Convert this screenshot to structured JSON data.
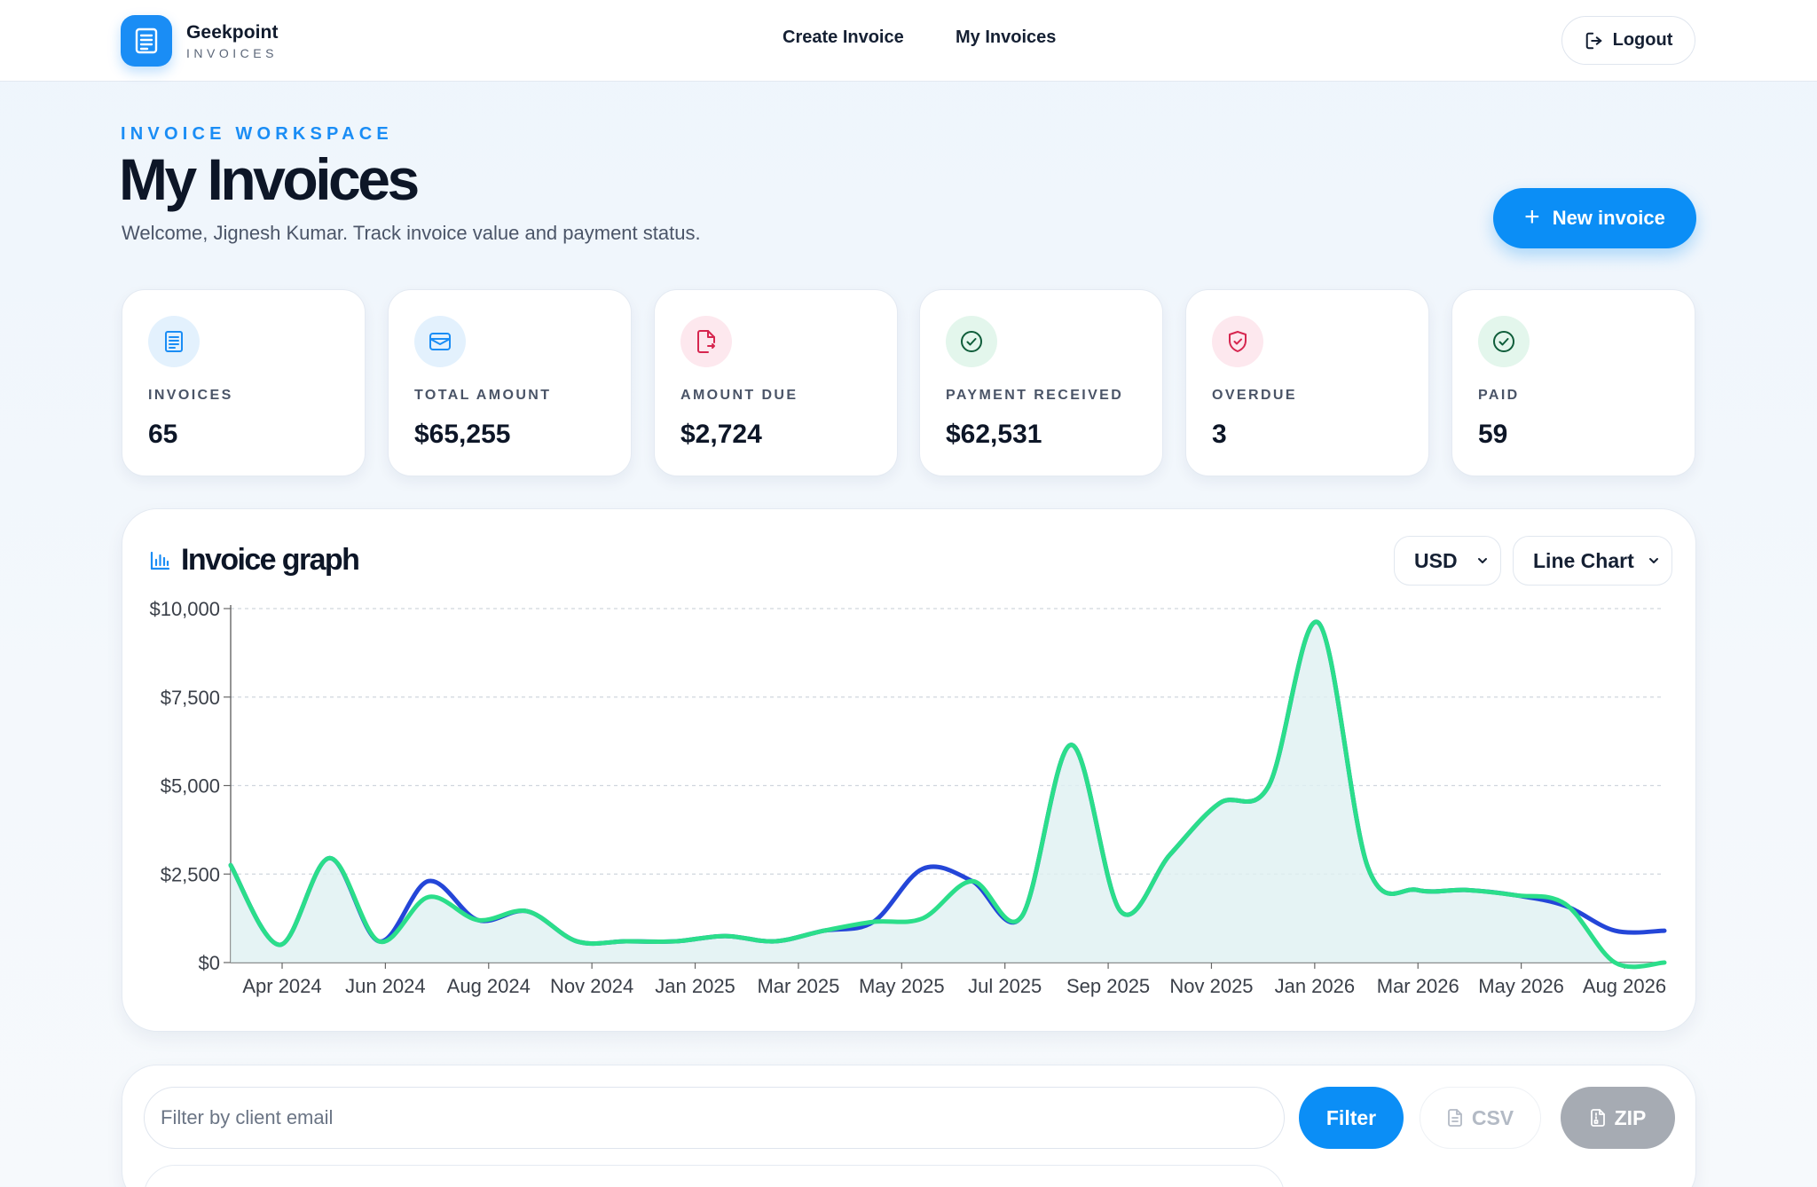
{
  "brand": {
    "name": "Geekpoint",
    "sub": "INVOICES",
    "logo_icon": "document-icon"
  },
  "nav": {
    "create": "Create Invoice",
    "my": "My Invoices"
  },
  "header": {
    "logout_label": "Logout",
    "logout_icon": "logout-icon"
  },
  "hero": {
    "eyebrow": "INVOICE WORKSPACE",
    "title": "My Invoices",
    "welcome": "Welcome, Jignesh Kumar. Track invoice value and payment status.",
    "new_invoice_label": "New invoice"
  },
  "stats": [
    {
      "label": "INVOICES",
      "value": "65",
      "icon": "receipt-icon",
      "bg": "#e3f1fd",
      "fg": "#1a8df5"
    },
    {
      "label": "TOTAL AMOUNT",
      "value": "$65,255",
      "icon": "wallet-icon",
      "bg": "#e3f1fd",
      "fg": "#1a8df5"
    },
    {
      "label": "AMOUNT DUE",
      "value": "$2,724",
      "icon": "file-due-icon",
      "bg": "#fde8ee",
      "fg": "#d6264f"
    },
    {
      "label": "PAYMENT RECEIVED",
      "value": "$62,531",
      "icon": "check-circle-icon",
      "bg": "#e3f6ec",
      "fg": "#0f7a4a"
    },
    {
      "label": "OVERDUE",
      "value": "3",
      "icon": "shield-alert-icon",
      "bg": "#fde8ee",
      "fg": "#d6264f"
    },
    {
      "label": "PAID",
      "value": "59",
      "icon": "check-circle-icon",
      "bg": "#e3f6ec",
      "fg": "#0f7a4a"
    }
  ],
  "graph": {
    "title": "Invoice graph",
    "icon": "bar-chart-icon",
    "currency_selected": "USD",
    "chart_type_selected": "Line Chart"
  },
  "chart_data": {
    "type": "line",
    "x": [
      "2024-03",
      "2024-04",
      "2024-05",
      "2024-06",
      "2024-07",
      "2024-08",
      "2024-09",
      "2024-10",
      "2024-11",
      "2024-12",
      "2025-01",
      "2025-02",
      "2025-03",
      "2025-04",
      "2025-05",
      "2025-06",
      "2025-07",
      "2025-08",
      "2025-09",
      "2025-10",
      "2025-11",
      "2025-12",
      "2026-01",
      "2026-02",
      "2026-03",
      "2026-04",
      "2026-05",
      "2026-06",
      "2026-07",
      "2026-08"
    ],
    "tick_labels": [
      "Apr 2024",
      "Jun 2024",
      "Aug 2024",
      "Nov 2024",
      "Jan 2025",
      "Mar 2025",
      "May 2025",
      "Jul 2025",
      "Sep 2025",
      "Nov 2025",
      "Jan 2026",
      "Mar 2026",
      "May 2026",
      "Aug 2026"
    ],
    "yticks": [
      "$0",
      "$2,500",
      "$5,000",
      "$7,500",
      "$10,000"
    ],
    "ylim": [
      0,
      10000
    ],
    "grid": true,
    "series": [
      {
        "color": "#2446d8",
        "values": [
          2750,
          500,
          2950,
          600,
          2300,
          1200,
          1450,
          600,
          600,
          600,
          750,
          600,
          900,
          1150,
          2650,
          2300,
          1300,
          6150,
          1450,
          3050,
          4500,
          5000,
          9600,
          2700,
          2050,
          2050,
          1900,
          1600,
          900,
          900
        ]
      },
      {
        "color": "#2bde8a",
        "fill": "#dff0f1",
        "values": [
          2750,
          500,
          2950,
          600,
          1850,
          1200,
          1450,
          600,
          600,
          600,
          750,
          600,
          900,
          1150,
          1250,
          2300,
          1300,
          6150,
          1450,
          3050,
          4500,
          5000,
          9600,
          2700,
          2050,
          2050,
          1900,
          1650,
          0,
          0
        ]
      }
    ]
  },
  "filter": {
    "placeholder": "Filter by client email",
    "filter_label": "Filter",
    "csv_label": "CSV",
    "zip_label": "ZIP"
  }
}
